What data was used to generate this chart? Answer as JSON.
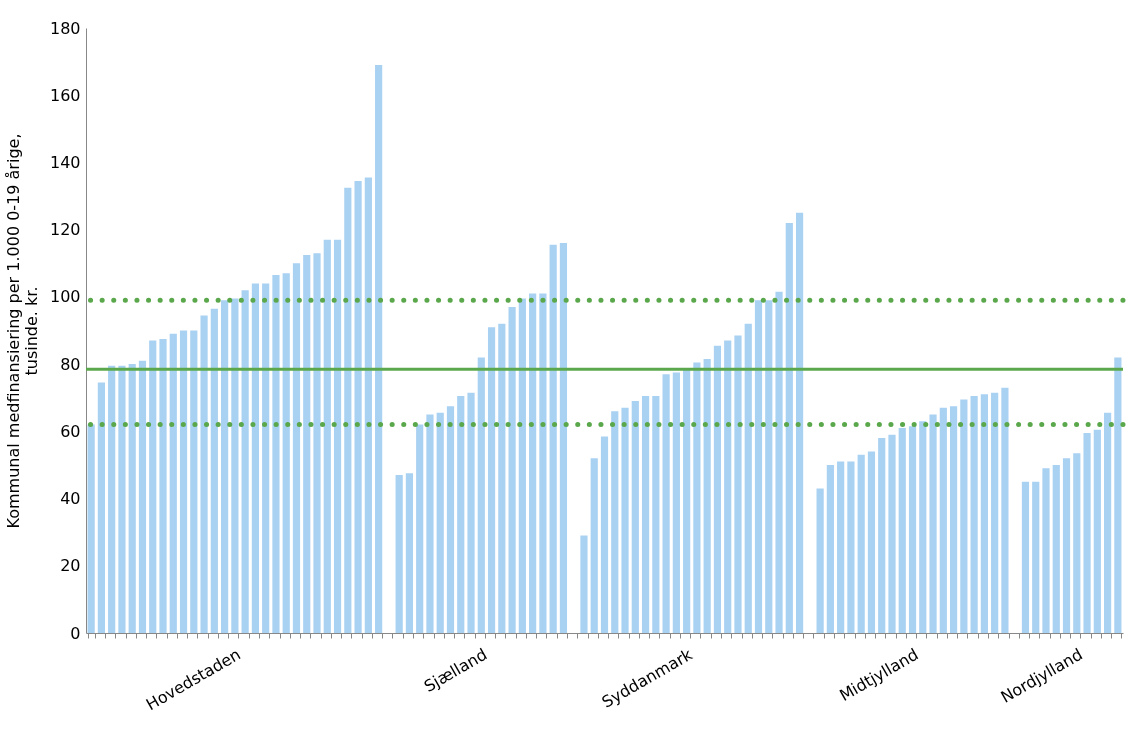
{
  "chart_data": {
    "type": "bar",
    "ylabel": "Kommunal medfinansiering per 1.000 0-19 årige, tusinde. kr.",
    "categories": [
      null,
      null,
      null,
      null,
      null,
      null,
      null,
      null,
      null,
      null,
      null,
      null,
      null,
      null,
      "Hovedstaden",
      null,
      null,
      null,
      null,
      null,
      null,
      null,
      null,
      null,
      null,
      null,
      null,
      null,
      null,
      null,
      null,
      null,
      null,
      null,
      null,
      null,
      null,
      null,
      "Sjælland",
      null,
      null,
      null,
      null,
      null,
      null,
      null,
      null,
      null,
      null,
      null,
      null,
      null,
      null,
      null,
      null,
      null,
      null,
      null,
      "Syddanmark",
      null,
      null,
      null,
      null,
      null,
      null,
      null,
      null,
      null,
      null,
      null,
      null,
      null,
      null,
      null,
      null,
      null,
      null,
      null,
      null,
      null,
      "Midtjylland",
      null,
      null,
      null,
      null,
      null,
      null,
      null,
      null,
      null,
      null,
      null,
      null,
      null,
      null,
      null,
      "Nordjylland",
      null,
      null,
      null,
      null
    ],
    "values": [
      62,
      74.5,
      79.5,
      79.5,
      80,
      81,
      87,
      87.5,
      89,
      90,
      90,
      94.5,
      96.5,
      99,
      99.5,
      102,
      104,
      104,
      106.5,
      107,
      110,
      112.5,
      113,
      117,
      117,
      132.5,
      134.5,
      135.5,
      169,
      null,
      47,
      47.5,
      62,
      65,
      65.5,
      67.5,
      70.5,
      71.5,
      82,
      91,
      92,
      97,
      99.5,
      101,
      101,
      115.5,
      116,
      null,
      29,
      52,
      58.5,
      66,
      67,
      69,
      70.5,
      70.5,
      77,
      77.5,
      78.5,
      80.5,
      81.5,
      85.5,
      87,
      88.5,
      92,
      99,
      99,
      101.5,
      122,
      125,
      null,
      43,
      50,
      51,
      51,
      53,
      54,
      58,
      59,
      61,
      61.5,
      63,
      65,
      67,
      67.5,
      69.5,
      70.5,
      71,
      71.5,
      73,
      null,
      45,
      45,
      49,
      50,
      52,
      53.5,
      59.5,
      60.5,
      65.5,
      82
    ],
    "color": "#a9d1f2",
    "ylim": [
      0,
      180
    ],
    "yticks": [
      0,
      20,
      40,
      60,
      80,
      100,
      120,
      140,
      160,
      180
    ],
    "grid": false,
    "ref_lines": [
      {
        "axis": "y",
        "value": 78.5,
        "color": "#5ba84c",
        "line_style": "solid"
      },
      {
        "axis": "y",
        "value": 99,
        "color": "#5ba84c",
        "line_style": "dotted"
      },
      {
        "axis": "y",
        "value": 62,
        "color": "#5ba84c",
        "line_style": "dotted"
      }
    ]
  }
}
